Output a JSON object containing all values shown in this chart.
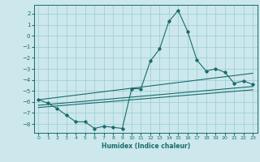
{
  "xlabel": "Humidex (Indice chaleur)",
  "background_color": "#cce8ec",
  "grid_color": "#99ccd4",
  "line_color": "#1a6b6b",
  "xlim": [
    -0.5,
    23.5
  ],
  "ylim": [
    -8.8,
    2.8
  ],
  "xticks": [
    0,
    1,
    2,
    3,
    4,
    5,
    6,
    7,
    8,
    9,
    10,
    11,
    12,
    13,
    14,
    15,
    16,
    17,
    18,
    19,
    20,
    21,
    22,
    23
  ],
  "yticks": [
    -8,
    -7,
    -6,
    -5,
    -4,
    -3,
    -2,
    -1,
    0,
    1,
    2
  ],
  "line1_x": [
    0,
    1,
    2,
    3,
    4,
    5,
    6,
    7,
    8,
    9,
    10,
    11,
    12,
    13,
    14,
    15,
    16,
    17,
    18,
    19,
    20,
    21,
    22,
    23
  ],
  "line1_y": [
    -5.8,
    -6.1,
    -6.6,
    -7.2,
    -7.8,
    -7.8,
    -8.4,
    -8.2,
    -8.3,
    -8.4,
    -4.8,
    -4.8,
    -2.3,
    -1.2,
    1.3,
    2.3,
    0.4,
    -2.2,
    -3.2,
    -3.0,
    -3.3,
    -4.3,
    -4.1,
    -4.4
  ],
  "line2_x": [
    0,
    23
  ],
  "line2_y": [
    -5.8,
    -3.4
  ],
  "line3_x": [
    0,
    23
  ],
  "line3_y": [
    -6.3,
    -4.6
  ],
  "line4_x": [
    0,
    23
  ],
  "line4_y": [
    -6.5,
    -4.9
  ]
}
